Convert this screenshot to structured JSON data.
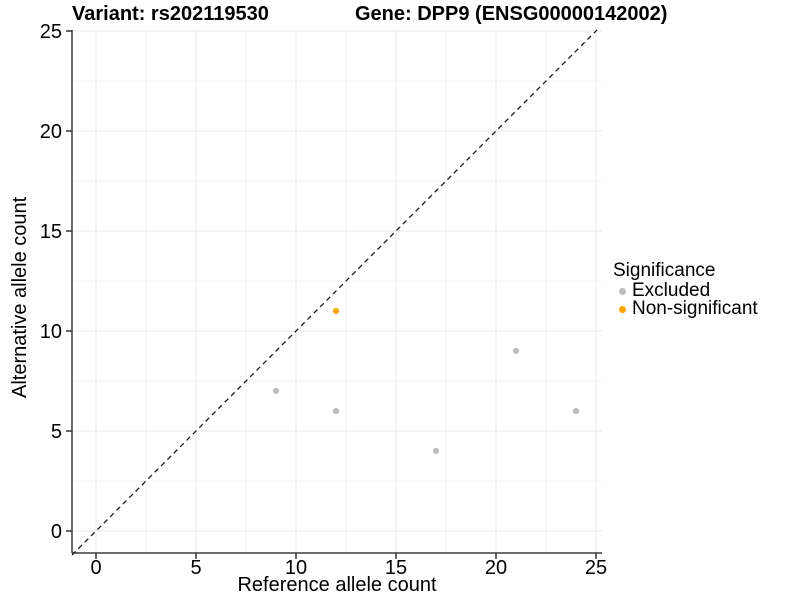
{
  "titles": {
    "left": "Variant: rs202119530",
    "right": "Gene: DPP9 (ENSG00000142002)"
  },
  "chart_data": {
    "type": "scatter",
    "title": "Variant: rs202119530 — Gene: DPP9 (ENSG00000142002)",
    "xlabel": "Reference allele count",
    "ylabel": "Alternative allele count",
    "xlim": [
      -1.2,
      26.3
    ],
    "ylim": [
      -1.1,
      25.1
    ],
    "xticks": [
      0,
      5,
      10,
      15,
      20,
      25
    ],
    "yticks": [
      0,
      5,
      10,
      15,
      20,
      25
    ],
    "grid": "major+minor",
    "legend_position": "right",
    "identity_line": {
      "equation": "y = x",
      "style": "dashed",
      "color": "#1a1a1a"
    },
    "legend": {
      "title": "Significance",
      "entries": [
        {
          "label": "Excluded",
          "color": "#bebebe"
        },
        {
          "label": "Non-significant",
          "color": "#ffa500"
        }
      ]
    },
    "series": [
      {
        "name": "Excluded",
        "color": "#bebebe",
        "points": [
          [
            9,
            7
          ],
          [
            12,
            6
          ],
          [
            17,
            4
          ],
          [
            21,
            9
          ],
          [
            24,
            6
          ]
        ]
      },
      {
        "name": "Non-significant",
        "color": "#ffa500",
        "points": [
          [
            12,
            11
          ]
        ]
      }
    ]
  },
  "style": {
    "grid_major": "#e8e8e8",
    "grid_minor": "#f4f4f4",
    "axis_line": "#3a3a3a",
    "tick_color": "#333333",
    "text_color": "#000000"
  }
}
